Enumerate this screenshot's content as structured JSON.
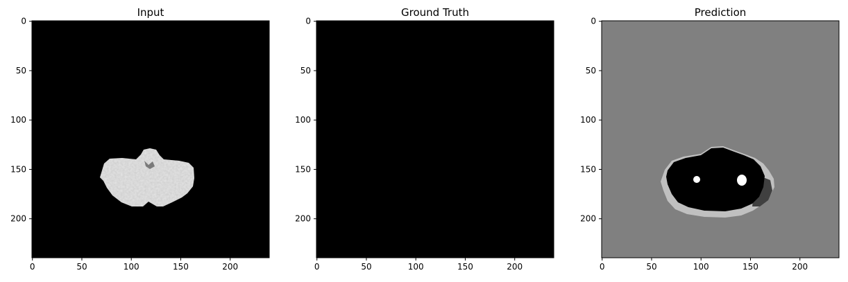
{
  "colors": {
    "input_background": "#000000",
    "input_tissue": "#e6e6e6",
    "ground_truth_background": "#000000",
    "prediction_background": "#808080",
    "prediction_region": "#000000",
    "prediction_rim": "#c0c0c0",
    "prediction_dark_patch": "#404040",
    "prediction_spots": "#ffffff"
  },
  "chart_data": [
    {
      "type": "image",
      "title": "Input",
      "image_size": [
        240,
        240
      ],
      "xticks": [
        "0",
        "50",
        "100",
        "150",
        "200"
      ],
      "yticks": [
        "0",
        "50",
        "100",
        "150",
        "200"
      ],
      "content": "bright tissue cross-section on black background"
    },
    {
      "type": "image",
      "title": "Ground Truth",
      "image_size": [
        240,
        240
      ],
      "xticks": [
        "0",
        "50",
        "100",
        "150",
        "200"
      ],
      "yticks": [
        "0",
        "50",
        "100",
        "150",
        "200"
      ],
      "content": "uniformly black mask"
    },
    {
      "type": "image",
      "title": "Prediction",
      "image_size": [
        240,
        240
      ],
      "xticks": [
        "0",
        "50",
        "100",
        "150",
        "200"
      ],
      "yticks": [
        "0",
        "50",
        "100",
        "150",
        "200"
      ],
      "content": "gray background with black region, light rim, dark patch and two white spots"
    }
  ]
}
